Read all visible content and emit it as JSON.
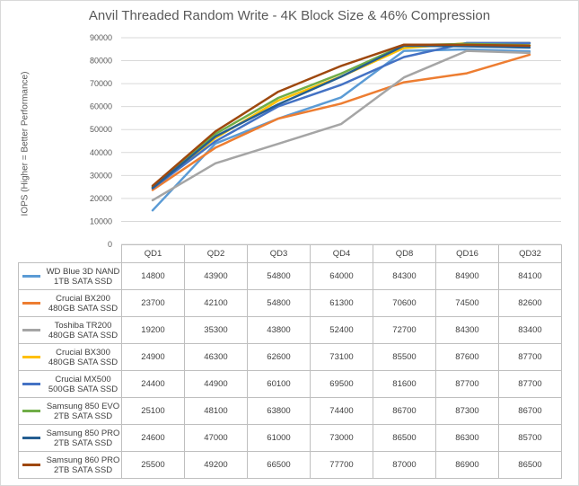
{
  "chart_data": {
    "type": "line",
    "title": "Anvil Threaded Random Write - 4K Block Size & 46% Compression",
    "ylabel": "IOPS (Higher = Better Performance)",
    "xlabel": "",
    "categories": [
      "QD1",
      "QD2",
      "QD3",
      "QD4",
      "QD8",
      "QD16",
      "QD32"
    ],
    "ylim": [
      0,
      90000
    ],
    "yticks": [
      "0",
      "10000",
      "20000",
      "30000",
      "40000",
      "50000",
      "60000",
      "70000",
      "80000",
      "90000"
    ],
    "grid": true,
    "legend": "data-table",
    "series": [
      {
        "name": "WD Blue 3D NAND\n1TB SATA SSD",
        "color": "#5b9bd5",
        "values": [
          14800,
          43900,
          54800,
          64000,
          84300,
          84900,
          84100
        ]
      },
      {
        "name": "Crucial BX200\n480GB SATA SSD",
        "color": "#ed7d31",
        "values": [
          23700,
          42100,
          54800,
          61300,
          70600,
          74500,
          82600
        ]
      },
      {
        "name": "Toshiba TR200\n480GB SATA SSD",
        "color": "#a5a5a5",
        "values": [
          19200,
          35300,
          43800,
          52400,
          72700,
          84300,
          83400
        ]
      },
      {
        "name": "Crucial BX300\n480GB SATA SSD",
        "color": "#ffc000",
        "values": [
          24900,
          46300,
          62600,
          73100,
          85500,
          87600,
          87700
        ]
      },
      {
        "name": "Crucial MX500\n500GB SATA SSD",
        "color": "#4472c4",
        "values": [
          24400,
          44900,
          60100,
          69500,
          81600,
          87700,
          87700
        ]
      },
      {
        "name": "Samsung 850 EVO\n2TB SATA SSD",
        "color": "#70ad47",
        "values": [
          25100,
          48100,
          63800,
          74400,
          86700,
          87300,
          86700
        ]
      },
      {
        "name": "Samsung 850 PRO\n2TB SATA SSD",
        "color": "#255e91",
        "values": [
          24600,
          47000,
          61000,
          73000,
          86500,
          86300,
          85700
        ]
      },
      {
        "name": "Samsung 860 PRO\n2TB SATA SSD",
        "color": "#9e480e",
        "values": [
          25500,
          49200,
          66500,
          77700,
          87000,
          86900,
          86500
        ]
      }
    ]
  }
}
